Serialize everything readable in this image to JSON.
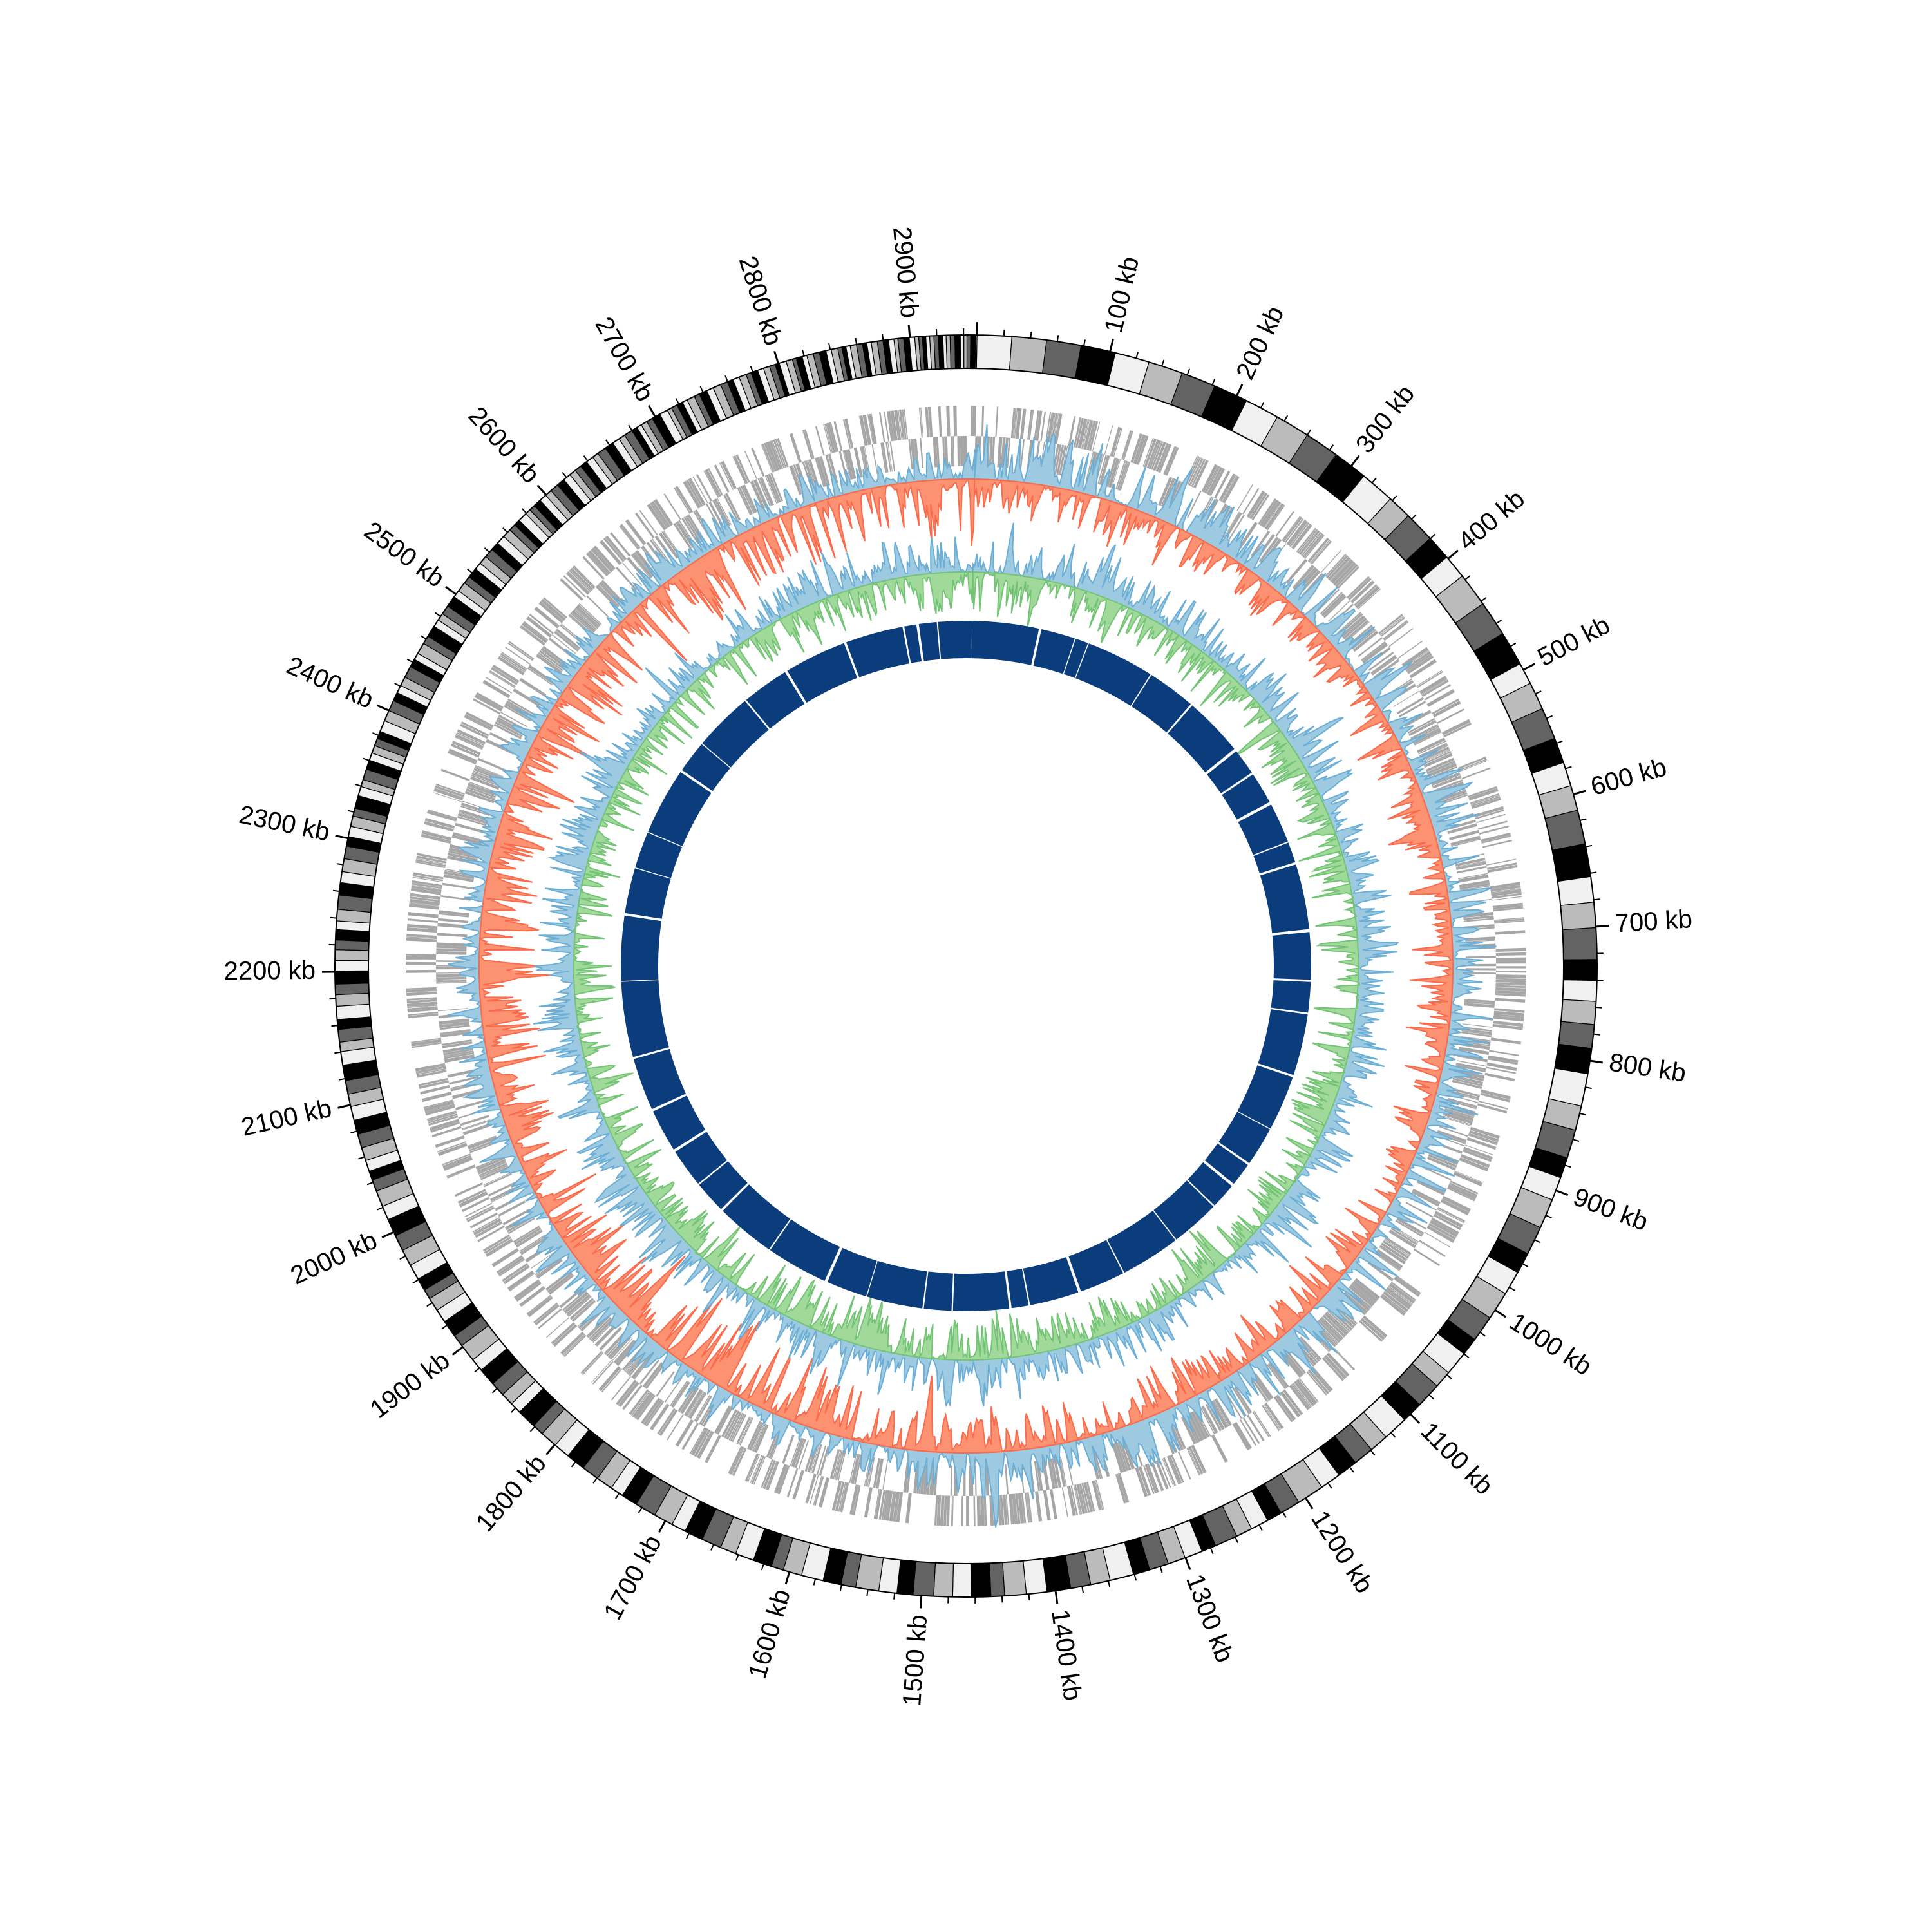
{
  "chart_data": {
    "type": "area",
    "layout": "circular",
    "genome_length_kb": 2950,
    "tick_interval_kb": 100,
    "minor_tick_interval_kb": 20,
    "tick_unit": "kb",
    "tick_labels": [
      "100 kb",
      "200 kb",
      "300 kb",
      "400 kb",
      "500 kb",
      "600 kb",
      "700 kb",
      "800 kb",
      "900 kb",
      "1000 kb",
      "1100 kb",
      "1200 kb",
      "1300 kb",
      "1400 kb",
      "1500 kb",
      "1600 kb",
      "1700 kb",
      "1800 kb",
      "1900 kb",
      "2000 kb",
      "2100 kb",
      "2200 kb",
      "2300 kb",
      "2400 kb",
      "2500 kb",
      "2600 kb",
      "2700 kb",
      "2800 kb",
      "2900 kb"
    ],
    "tracks": [
      {
        "name": "ideogram",
        "colors": [
          "#f0f0f0",
          "#bbbbbb",
          "#636363",
          "#000000"
        ]
      },
      {
        "name": "genes-forward-strand",
        "color": "#a6a6a6"
      },
      {
        "name": "genes-reverse-strand",
        "color": "#a6a6a6"
      },
      {
        "name": "skew-positive",
        "color": "#6baed6",
        "fill": "#9ecae1"
      },
      {
        "name": "skew-negative",
        "color": "#fb6a4a",
        "fill": "#fc9272"
      },
      {
        "name": "content-positive",
        "color": "#6baed6",
        "fill": "#9ecae1"
      },
      {
        "name": "content-negative",
        "color": "#74c476",
        "fill": "#a1d99b"
      },
      {
        "name": "inner-features",
        "color": "#0b3d7c"
      }
    ],
    "grid": false,
    "legend": "none"
  }
}
